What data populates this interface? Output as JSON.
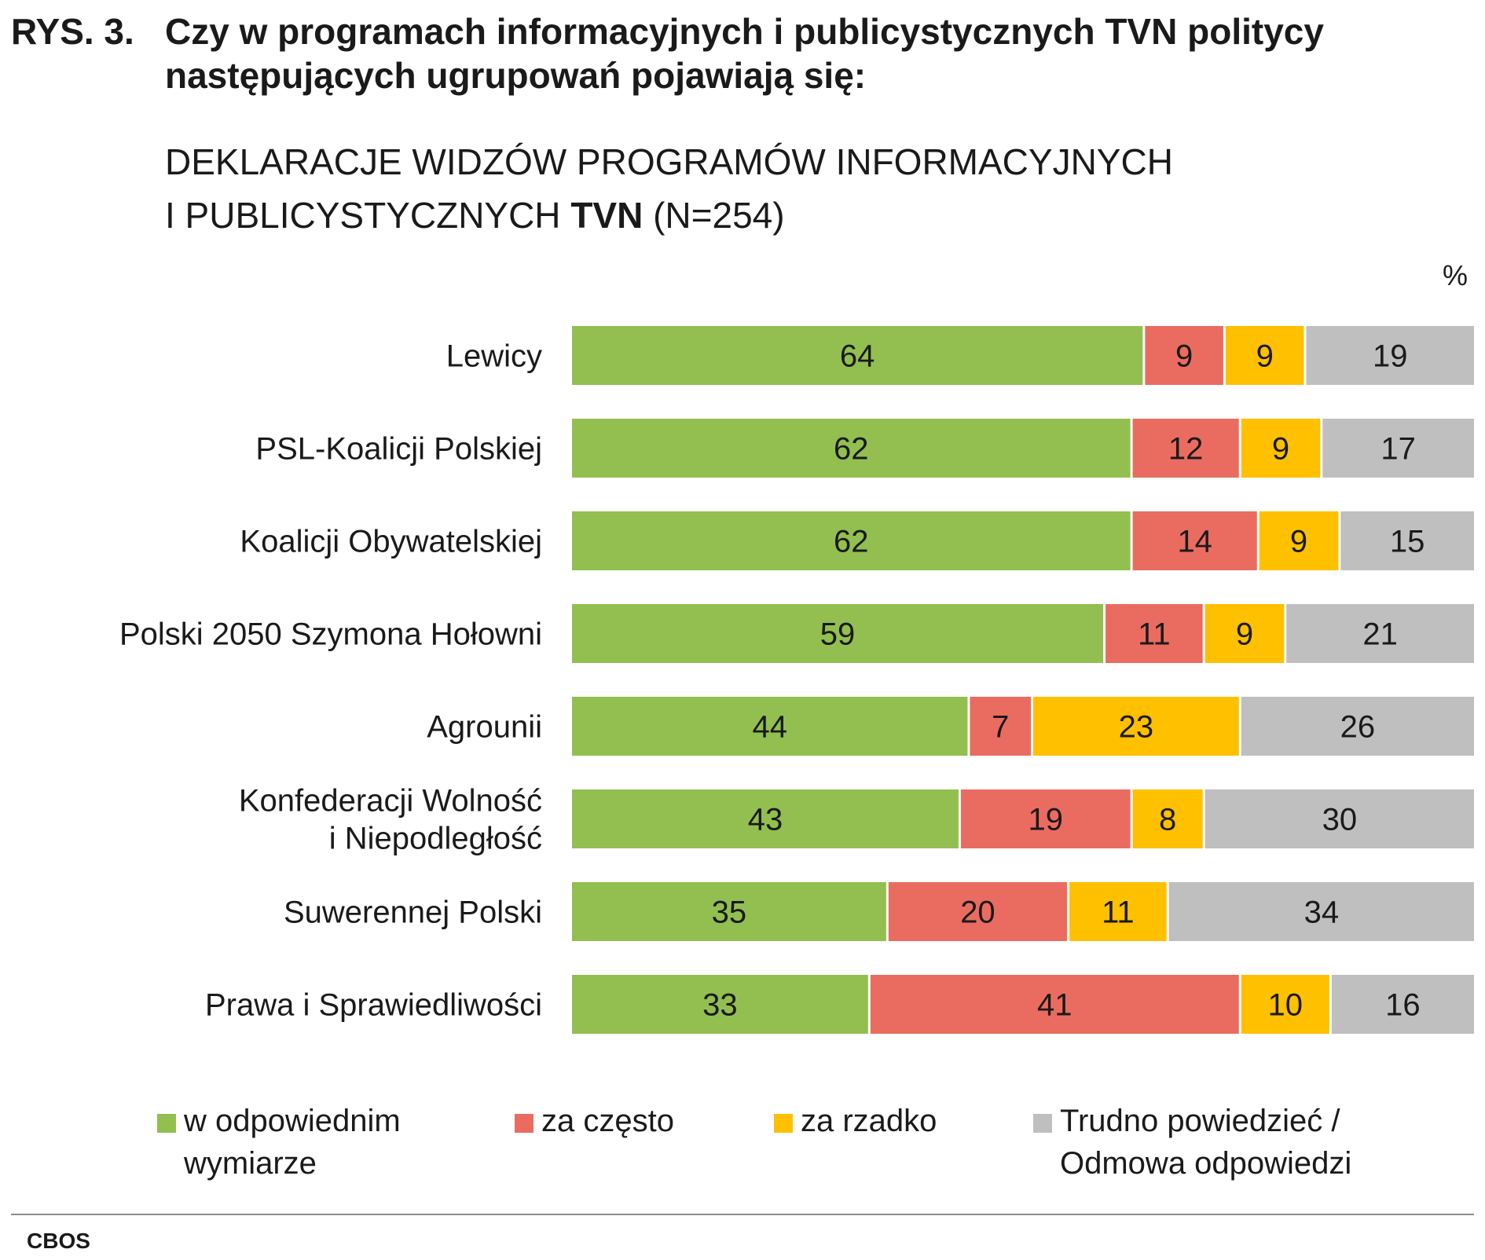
{
  "figure_label": "RYS. 3.",
  "title": "Czy w programach informacyjnych i publicystycznych TVN politycy następujących ugrupowań pojawiają się:",
  "subtitle": {
    "line1": "DEKLARACJE WIDZÓW PROGRAMÓW INFORMACYJNYCH",
    "line2_prefix": "I PUBLICYSTYCZNYCH ",
    "line2_bold": "TVN",
    "line2_suffix": " (N=254)"
  },
  "unit": "%",
  "source": "CBOS",
  "chart_data": {
    "type": "bar",
    "orientation": "horizontal",
    "stacked": true,
    "title": "Czy w programach informacyjnych i publicystycznych TVN politycy następujących ugrupowań pojawiają się:",
    "categories": [
      "Lewicy",
      "PSL-Koalicji Polskiej",
      "Koalicji Obywatelskiej",
      "Polski 2050 Szymona Hołowni",
      "Agrounii",
      "Konfederacji Wolność\ni Niepodległość",
      "Suwerennej Polski",
      "Prawa i Sprawiedliwości"
    ],
    "series": [
      {
        "name": "w odpowiednim\nwymiarze",
        "color": "#92bf50",
        "values": [
          64,
          62,
          62,
          59,
          44,
          43,
          35,
          33
        ]
      },
      {
        "name": "za często",
        "color": "#ea6c61",
        "values": [
          9,
          12,
          14,
          11,
          7,
          19,
          20,
          41
        ]
      },
      {
        "name": "za rzadko",
        "color": "#ffc000",
        "values": [
          9,
          9,
          9,
          9,
          23,
          8,
          11,
          10
        ]
      },
      {
        "name": "Trudno powiedzieć /\nOdmowa odpowiedzi",
        "color": "#bfbfbf",
        "values": [
          19,
          17,
          15,
          21,
          26,
          30,
          34,
          16
        ]
      }
    ],
    "xlim": [
      0,
      100
    ],
    "unit": "%",
    "data_labels": true,
    "grid": false,
    "legend_position": "bottom"
  }
}
